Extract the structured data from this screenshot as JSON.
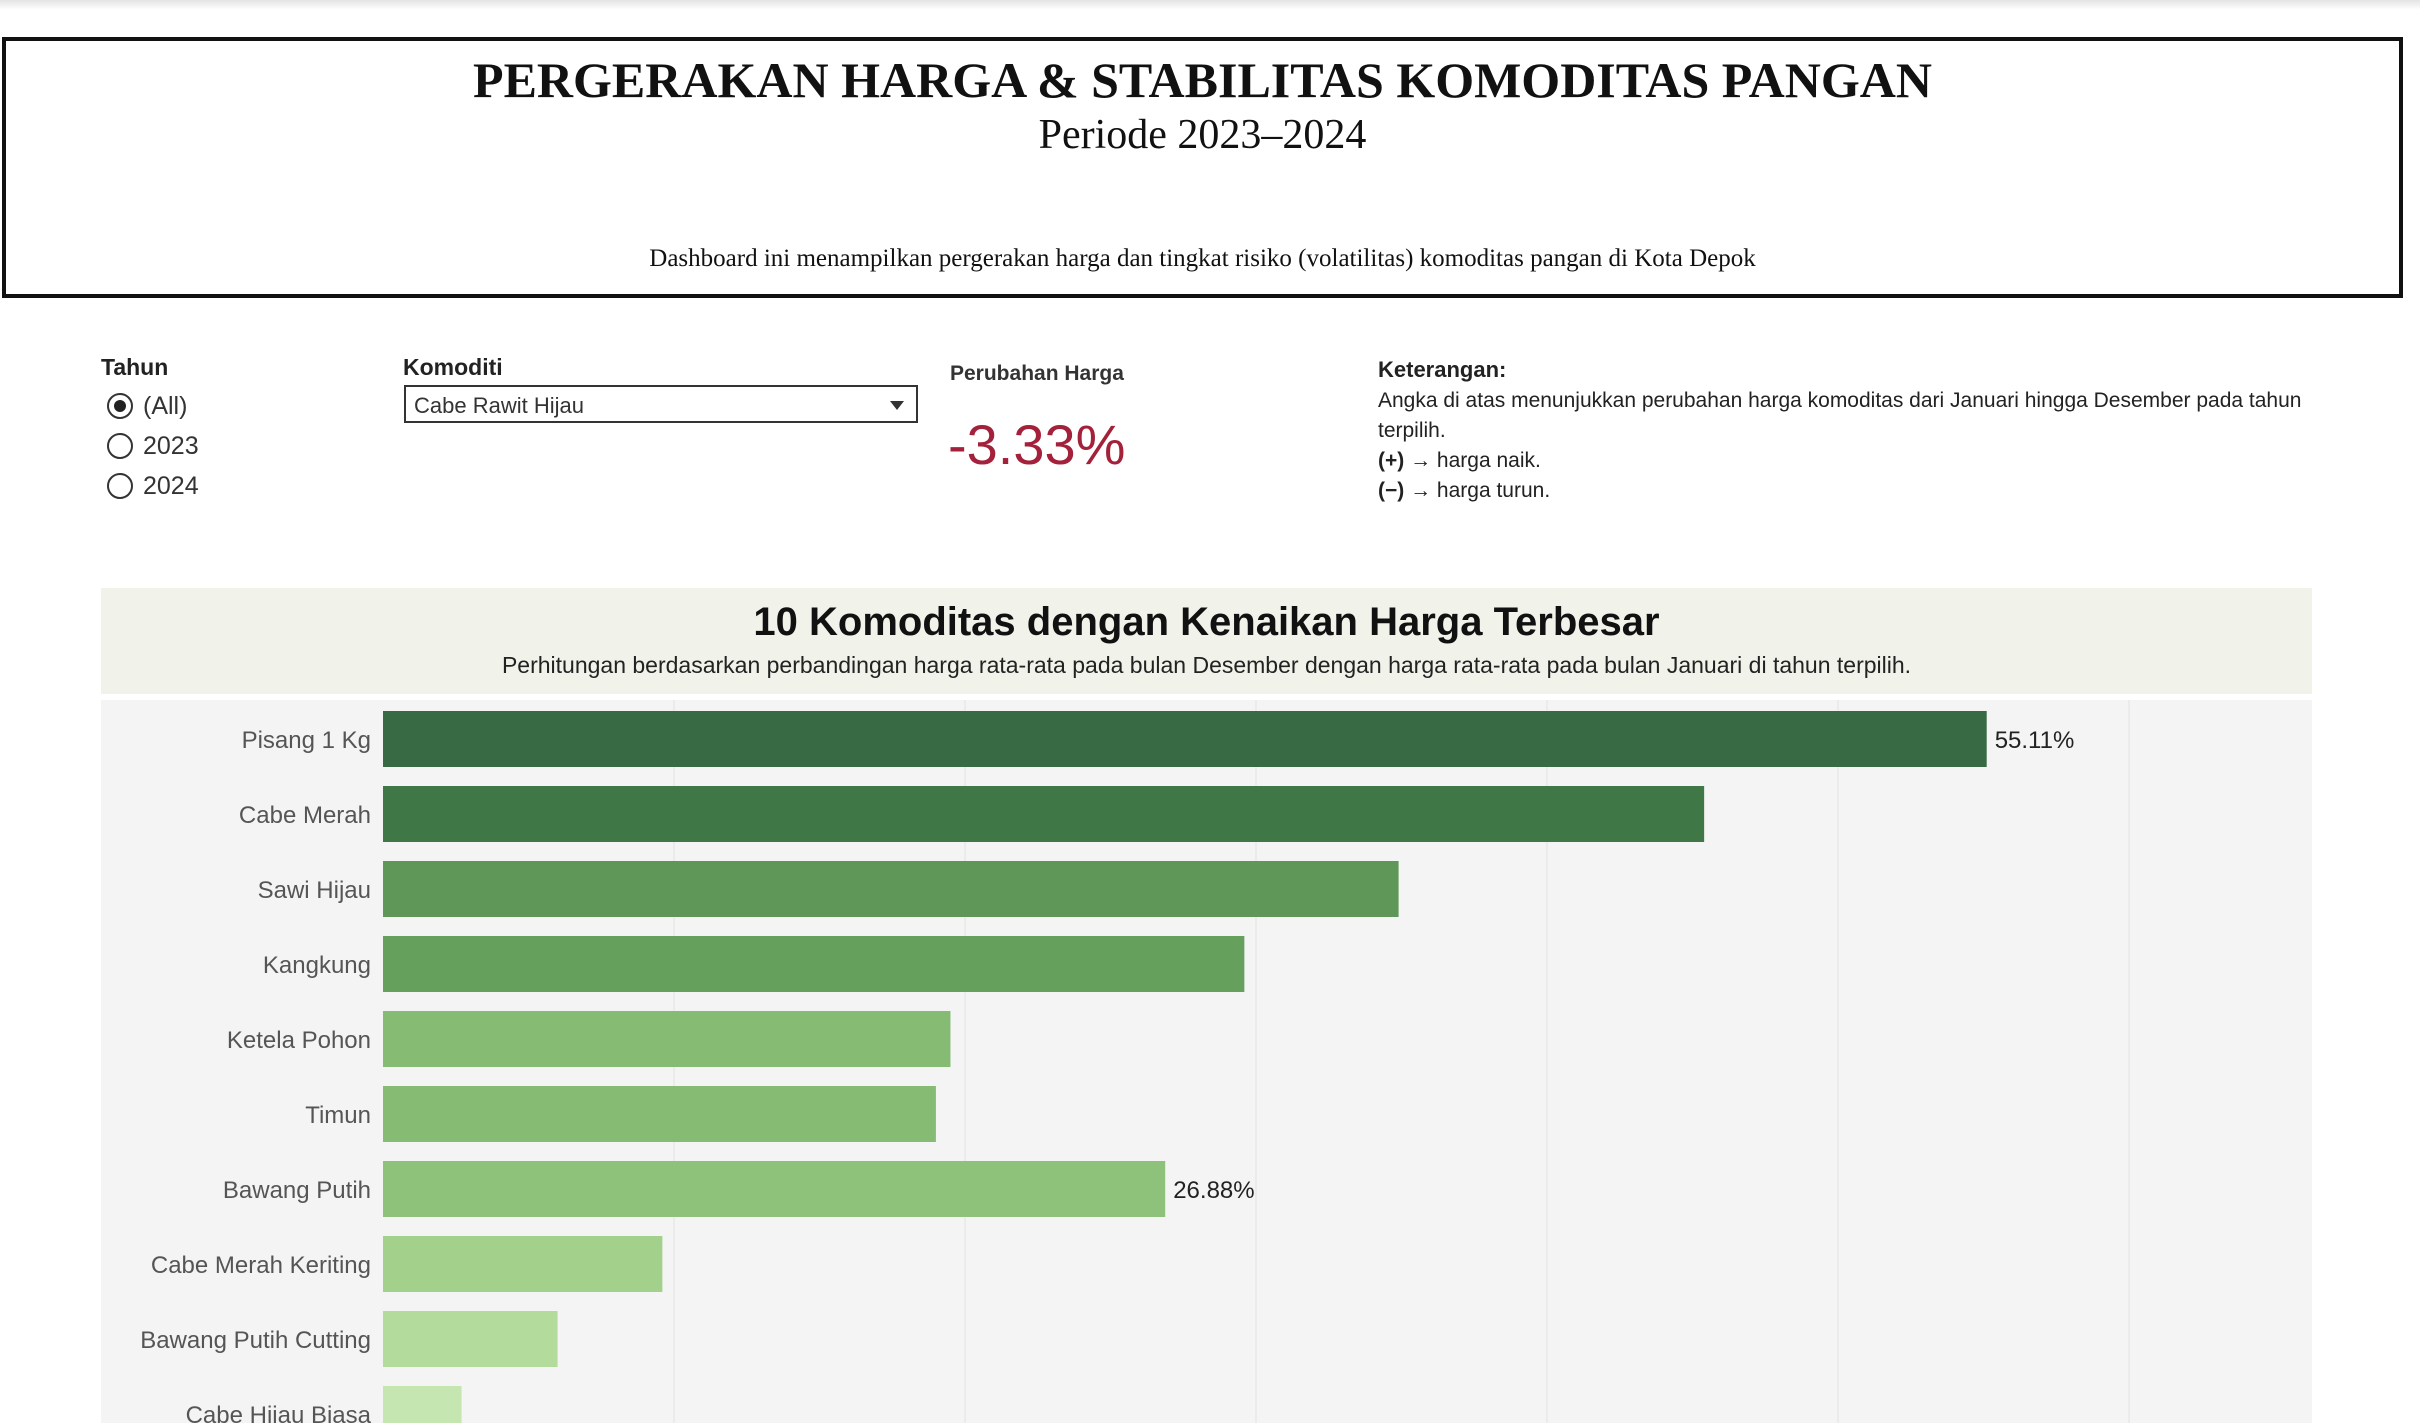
{
  "header": {
    "title": "PERGERAKAN HARGA & STABILITAS KOMODITAS PANGAN",
    "period": "Periode 2023–2024",
    "description": "Dashboard ini menampilkan pergerakan harga dan tingkat risiko (volatilitas) komoditas pangan di Kota Depok"
  },
  "filters": {
    "tahun": {
      "label": "Tahun",
      "options": [
        "(All)",
        "2023",
        "2024"
      ],
      "selected": "(All)"
    },
    "komoditi": {
      "label": "Komoditi",
      "selected": "Cabe Rawit Hijau"
    }
  },
  "kpi": {
    "label": "Perubahan Harga",
    "value": "-3.33%",
    "color": "#a3213a"
  },
  "keterangan": {
    "title": "Keterangan:",
    "text": "Angka di atas menunjukkan perubahan harga komoditas dari Januari hingga Desember pada tahun terpilih.",
    "plus_marker": "(+)",
    "plus_text": " → harga naik.",
    "minus_marker": "(−)",
    "minus_text": " → harga turun."
  },
  "chart_header": {
    "title": "10 Komoditas dengan Kenaikan Harga Terbesar",
    "subtitle": "Perhitungan berdasarkan perbandingan harga rata-rata pada bulan Desember dengan harga rata-rata pada bulan Januari di tahun terpilih."
  },
  "chart_data": {
    "type": "bar",
    "orientation": "horizontal",
    "categories": [
      "Pisang 1 Kg",
      "Cabe Merah",
      "Sawi Hijau",
      "Kangkung",
      "Ketela Pohon",
      "Timun",
      "Bawang Putih",
      "Cabe Merah Keriting",
      "Bawang Putih Cutting",
      "Cabe Hijau Biasa"
    ],
    "values": [
      55.11,
      45.4,
      34.9,
      29.6,
      19.5,
      19.0,
      26.88,
      9.6,
      6.0,
      2.7
    ],
    "data_labels": [
      "55.11%",
      "",
      "",
      "",
      "",
      "",
      "26.88%",
      "",
      "",
      ""
    ],
    "colors": [
      "#386b43",
      "#3f7846",
      "#5f9758",
      "#66a05d",
      "#86bb73",
      "#86bb73",
      "#8ec27a",
      "#a3d08a",
      "#b3dc9c",
      "#c5e6b0"
    ],
    "xlim": [
      0,
      60
    ],
    "grid": true
  }
}
